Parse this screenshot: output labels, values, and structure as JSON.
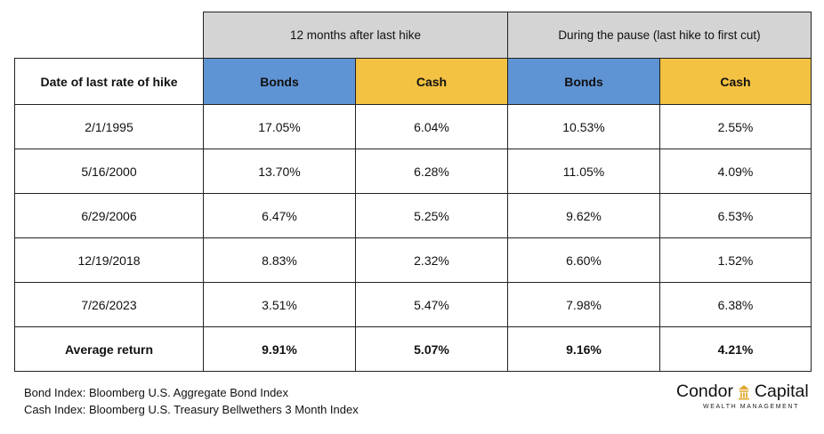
{
  "chart_data": {
    "type": "table",
    "group_headers": [
      "12 months after last hike",
      "During the pause (last hike to first cut)"
    ],
    "column_headers": [
      "Date of last rate of hike",
      "Bonds",
      "Cash",
      "Bonds",
      "Cash"
    ],
    "rows": [
      [
        "2/1/1995",
        "17.05%",
        "6.04%",
        "10.53%",
        "2.55%"
      ],
      [
        "5/16/2000",
        "13.70%",
        "6.28%",
        "11.05%",
        "4.09%"
      ],
      [
        "6/29/2006",
        "6.47%",
        "5.25%",
        "9.62%",
        "6.53%"
      ],
      [
        "12/19/2018",
        "8.83%",
        "2.32%",
        "6.60%",
        "1.52%"
      ],
      [
        "7/26/2023",
        "3.51%",
        "5.47%",
        "7.98%",
        "6.38%"
      ]
    ],
    "average_row": [
      "Average return",
      "9.91%",
      "5.07%",
      "9.16%",
      "4.21%"
    ],
    "colors": {
      "bonds_header": "#5f94d4",
      "cash_header": "#f4c242",
      "group_header": "#d4d4d4"
    }
  },
  "footnotes": {
    "bond_index": "Bond Index: Bloomberg U.S. Aggregate Bond Index",
    "cash_index": "Cash Index: Bloomberg U.S. Treasury Bellwethers 3 Month Index"
  },
  "logo": {
    "name_left": "Condor",
    "name_right": "Capital",
    "tagline": "WEALTH MANAGEMENT",
    "icon": "building-icon"
  }
}
